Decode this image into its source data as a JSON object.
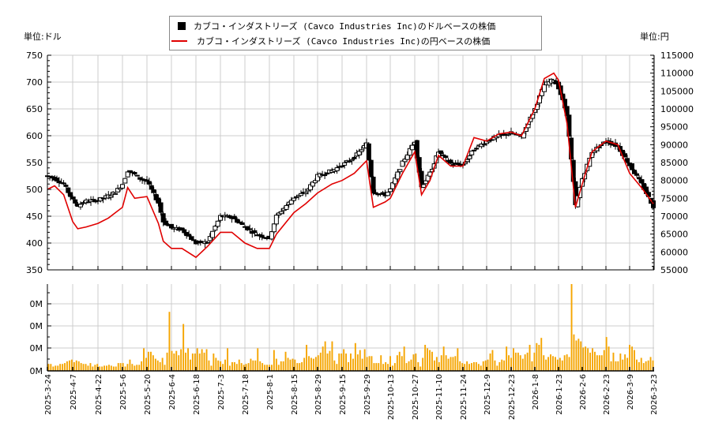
{
  "legend": {
    "usd_label": "カブコ・インダストリーズ (Cavco Industries Inc)のドルベースの株価",
    "jpy_label": "カブコ・インダストリーズ (Cavco Industries Inc)の円ベースの株価"
  },
  "axes": {
    "left_unit": "単位:ドル",
    "right_unit": "単位:円",
    "left_ticks": [
      "750",
      "700",
      "650",
      "600",
      "550",
      "500",
      "450",
      "400",
      "350"
    ],
    "right_ticks": [
      "115000",
      "110000",
      "105000",
      "100000",
      "95000",
      "90000",
      "85000",
      "80000",
      "75000",
      "70000",
      "65000",
      "60000",
      "55000"
    ],
    "volume_ticks": [
      "0M",
      "0M",
      "0M",
      "0M"
    ],
    "x_ticks": [
      "2025-3-24",
      "2025-4-7",
      "2025-4-22",
      "2025-5-6",
      "2025-5-20",
      "2025-6-4",
      "2025-6-18",
      "2025-7-3",
      "2025-7-18",
      "2025-8-1",
      "2025-8-15",
      "2025-8-29",
      "2025-9-15",
      "2025-9-29",
      "2025-10-13",
      "2025-10-27",
      "2025-11-10",
      "2025-11-24",
      "2025-12-9",
      "2025-12-23",
      "2026-1-8",
      "2026-1-23",
      "2026-2-6",
      "2026-2-23",
      "2026-3-9",
      "2026-3-23"
    ]
  },
  "colors": {
    "usd_candle": "#000000",
    "jpy_line": "#e00000",
    "volume_bar": "#f5a500",
    "grid": "#cccccc"
  },
  "chart_data": [
    {
      "type": "candlestick",
      "title": "カブコ・インダストリーズ (Cavco Industries Inc)のドルベースの株価",
      "ylabel": "単位:ドル",
      "ylim": [
        350,
        750
      ],
      "xlim": [
        "2025-3-24",
        "2026-3-23"
      ],
      "grid": true,
      "legend_position": "top-center",
      "close_series_usd": [
        {
          "x": "2025-3-24",
          "close": 525
        },
        {
          "x": "2025-3-28",
          "close": 520
        },
        {
          "x": "2025-4-2",
          "close": 510
        },
        {
          "x": "2025-4-7",
          "close": 480
        },
        {
          "x": "2025-4-10",
          "close": 470
        },
        {
          "x": "2025-4-15",
          "close": 478
        },
        {
          "x": "2025-4-22",
          "close": 480
        },
        {
          "x": "2025-4-28",
          "close": 488
        },
        {
          "x": "2025-5-2",
          "close": 495
        },
        {
          "x": "2025-5-6",
          "close": 510
        },
        {
          "x": "2025-5-9",
          "close": 535
        },
        {
          "x": "2025-5-13",
          "close": 528
        },
        {
          "x": "2025-5-16",
          "close": 520
        },
        {
          "x": "2025-5-20",
          "close": 515
        },
        {
          "x": "2025-5-27",
          "close": 475
        },
        {
          "x": "2025-5-30",
          "close": 440
        },
        {
          "x": "2025-6-4",
          "close": 428
        },
        {
          "x": "2025-6-10",
          "close": 425
        },
        {
          "x": "2025-6-18",
          "close": 400
        },
        {
          "x": "2025-6-25",
          "close": 402
        },
        {
          "x": "2025-7-3",
          "close": 450
        },
        {
          "x": "2025-7-10",
          "close": 448
        },
        {
          "x": "2025-7-18",
          "close": 430
        },
        {
          "x": "2025-7-25",
          "close": 415
        },
        {
          "x": "2025-8-1",
          "close": 410
        },
        {
          "x": "2025-8-5",
          "close": 450
        },
        {
          "x": "2025-8-15",
          "close": 485
        },
        {
          "x": "2025-8-22",
          "close": 495
        },
        {
          "x": "2025-8-29",
          "close": 525
        },
        {
          "x": "2025-9-8",
          "close": 535
        },
        {
          "x": "2025-9-15",
          "close": 545
        },
        {
          "x": "2025-9-22",
          "close": 560
        },
        {
          "x": "2025-9-29",
          "close": 585
        },
        {
          "x": "2025-10-3",
          "close": 495
        },
        {
          "x": "2025-10-10",
          "close": 490
        },
        {
          "x": "2025-10-13",
          "close": 500
        },
        {
          "x": "2025-10-20",
          "close": 550
        },
        {
          "x": "2025-10-27",
          "close": 590
        },
        {
          "x": "2025-10-31",
          "close": 505
        },
        {
          "x": "2025-11-5",
          "close": 530
        },
        {
          "x": "2025-11-10",
          "close": 570
        },
        {
          "x": "2025-11-17",
          "close": 548
        },
        {
          "x": "2025-11-24",
          "close": 545
        },
        {
          "x": "2025-12-1",
          "close": 575
        },
        {
          "x": "2025-12-9",
          "close": 590
        },
        {
          "x": "2025-12-16",
          "close": 600
        },
        {
          "x": "2025-12-23",
          "close": 605
        },
        {
          "x": "2025-12-30",
          "close": 598
        },
        {
          "x": "2026-1-8",
          "close": 650
        },
        {
          "x": "2026-1-14",
          "close": 695
        },
        {
          "x": "2026-1-20",
          "close": 705
        },
        {
          "x": "2026-1-23",
          "close": 690
        },
        {
          "x": "2026-1-28",
          "close": 640
        },
        {
          "x": "2026-2-2",
          "close": 470
        },
        {
          "x": "2026-2-6",
          "close": 520
        },
        {
          "x": "2026-2-13",
          "close": 570
        },
        {
          "x": "2026-2-23",
          "close": 590
        },
        {
          "x": "2026-3-2",
          "close": 580
        },
        {
          "x": "2026-3-9",
          "close": 545
        },
        {
          "x": "2026-3-16",
          "close": 510
        },
        {
          "x": "2026-3-23",
          "close": 468
        }
      ]
    },
    {
      "type": "line",
      "title": "カブコ・インダストリーズ (Cavco Industries Inc)の円ベースの株価",
      "ylabel": "単位:円",
      "ylim": [
        55000,
        115000
      ],
      "series": [
        {
          "name": "円ベース",
          "values_by_date": [
            {
              "x": "2025-3-24",
              "y": 77500
            },
            {
              "x": "2025-3-28",
              "y": 78500
            },
            {
              "x": "2025-4-2",
              "y": 76000
            },
            {
              "x": "2025-4-7",
              "y": 68500
            },
            {
              "x": "2025-4-10",
              "y": 66500
            },
            {
              "x": "2025-4-15",
              "y": 67000
            },
            {
              "x": "2025-4-22",
              "y": 68000
            },
            {
              "x": "2025-4-28",
              "y": 69500
            },
            {
              "x": "2025-5-2",
              "y": 71000
            },
            {
              "x": "2025-5-6",
              "y": 72500
            },
            {
              "x": "2025-5-9",
              "y": 78000
            },
            {
              "x": "2025-5-13",
              "y": 75000
            },
            {
              "x": "2025-5-20",
              "y": 75500
            },
            {
              "x": "2025-5-27",
              "y": 68000
            },
            {
              "x": "2025-5-30",
              "y": 63000
            },
            {
              "x": "2025-6-4",
              "y": 61000
            },
            {
              "x": "2025-6-10",
              "y": 61000
            },
            {
              "x": "2025-6-18",
              "y": 58500
            },
            {
              "x": "2025-6-25",
              "y": 61500
            },
            {
              "x": "2025-7-3",
              "y": 65500
            },
            {
              "x": "2025-7-10",
              "y": 65500
            },
            {
              "x": "2025-7-18",
              "y": 62500
            },
            {
              "x": "2025-7-25",
              "y": 61000
            },
            {
              "x": "2025-8-1",
              "y": 61000
            },
            {
              "x": "2025-8-5",
              "y": 65000
            },
            {
              "x": "2025-8-15",
              "y": 71000
            },
            {
              "x": "2025-8-22",
              "y": 73500
            },
            {
              "x": "2025-8-29",
              "y": 76500
            },
            {
              "x": "2025-9-8",
              "y": 79000
            },
            {
              "x": "2025-9-15",
              "y": 80000
            },
            {
              "x": "2025-9-22",
              "y": 82000
            },
            {
              "x": "2025-9-29",
              "y": 85500
            },
            {
              "x": "2025-10-3",
              "y": 72500
            },
            {
              "x": "2025-10-10",
              "y": 74000
            },
            {
              "x": "2025-10-13",
              "y": 75000
            },
            {
              "x": "2025-10-20",
              "y": 82000
            },
            {
              "x": "2025-10-27",
              "y": 88000
            },
            {
              "x": "2025-10-31",
              "y": 76000
            },
            {
              "x": "2025-11-5",
              "y": 80000
            },
            {
              "x": "2025-11-10",
              "y": 87000
            },
            {
              "x": "2025-11-17",
              "y": 84000
            },
            {
              "x": "2025-11-24",
              "y": 84000
            },
            {
              "x": "2025-12-1",
              "y": 92000
            },
            {
              "x": "2025-12-9",
              "y": 91000
            },
            {
              "x": "2025-12-16",
              "y": 93000
            },
            {
              "x": "2025-12-23",
              "y": 93500
            },
            {
              "x": "2025-12-30",
              "y": 92500
            },
            {
              "x": "2026-1-8",
              "y": 100000
            },
            {
              "x": "2026-1-14",
              "y": 108500
            },
            {
              "x": "2026-1-20",
              "y": 110000
            },
            {
              "x": "2026-1-23",
              "y": 108000
            },
            {
              "x": "2026-1-28",
              "y": 96000
            },
            {
              "x": "2026-2-2",
              "y": 72500
            },
            {
              "x": "2026-2-6",
              "y": 79000
            },
            {
              "x": "2026-2-13",
              "y": 88000
            },
            {
              "x": "2026-2-23",
              "y": 91000
            },
            {
              "x": "2026-3-2",
              "y": 90000
            },
            {
              "x": "2026-3-9",
              "y": 82000
            },
            {
              "x": "2026-3-16",
              "y": 78000
            },
            {
              "x": "2026-3-23",
              "y": 73500
            }
          ]
        }
      ]
    },
    {
      "type": "bar",
      "title": "出来高",
      "ylabel": "",
      "yticks_label": [
        "0M",
        "0M",
        "0M",
        "0M"
      ],
      "note": "relative daily volume heights (fraction of panel height); peak on ~2026-1-30",
      "categories_range": [
        "2025-3-24",
        "2026-3-23"
      ],
      "values_relative": [
        0.08,
        0.08,
        0.05,
        0.06,
        0.06,
        0.08,
        0.08,
        0.09,
        0.11,
        0.12,
        0.13,
        0.1,
        0.12,
        0.11,
        0.09,
        0.08,
        0.08,
        0.06,
        0.09,
        0.05,
        0.07,
        0.08,
        0.05,
        0.05,
        0.06,
        0.06,
        0.07,
        0.06,
        0.05,
        0.05,
        0.09,
        0.09,
        0.09,
        0.05,
        0.08,
        0.13,
        0.08,
        0.06,
        0.07,
        0.07,
        0.11,
        0.26,
        0.15,
        0.22,
        0.22,
        0.18,
        0.14,
        0.12,
        0.1,
        0.15,
        0.07,
        0.21,
        0.68,
        0.23,
        0.2,
        0.23,
        0.18,
        0.25,
        0.54,
        0.21,
        0.26,
        0.13,
        0.2,
        0.2,
        0.26,
        0.2,
        0.25,
        0.21,
        0.25,
        0.12,
        0.06,
        0.2,
        0.15,
        0.12,
        0.11,
        0.08,
        0.13,
        0.26,
        0.06,
        0.1,
        0.1,
        0.08,
        0.13,
        0.09,
        0.07,
        0.08,
        0.09,
        0.14,
        0.12,
        0.12,
        0.26,
        0.11,
        0.09,
        0.07,
        0.07,
        0.07,
        0.07,
        0.24,
        0.14,
        0.07,
        0.11,
        0.11,
        0.22,
        0.15,
        0.13,
        0.14,
        0.13,
        0.09,
        0.09,
        0.1,
        0.15,
        0.3,
        0.17,
        0.15,
        0.14,
        0.16,
        0.18,
        0.21,
        0.28,
        0.34,
        0.2,
        0.23,
        0.34,
        0.12,
        0.08,
        0.2,
        0.2,
        0.25,
        0.2,
        0.1,
        0.2,
        0.14,
        0.32,
        0.19,
        0.24,
        0.14,
        0.25,
        0.16,
        0.17,
        0.17,
        0.09,
        0.09,
        0.09,
        0.18,
        0.08,
        0.1,
        0.08,
        0.17,
        0.06,
        0.09,
        0.18,
        0.22,
        0.17,
        0.28,
        0.09,
        0.11,
        0.13,
        0.19,
        0.2,
        0.1,
        0.05,
        0.15,
        0.3,
        0.26,
        0.24,
        0.22,
        0.12,
        0.16,
        0.1,
        0.18,
        0.28,
        0.18,
        0.14,
        0.16,
        0.16,
        0.17,
        0.26,
        0.11,
        0.09,
        0.08,
        0.11,
        0.08,
        0.09,
        0.1,
        0.1,
        0.08,
        0.06,
        0.11,
        0.12,
        0.13,
        0.2,
        0.24,
        0.12,
        0.06,
        0.1,
        0.13,
        0.12,
        0.28,
        0.18,
        0.15,
        0.26,
        0.21,
        0.21,
        0.18,
        0.14,
        0.19,
        0.21,
        0.3,
        0.11,
        0.21,
        0.32,
        0.3,
        0.38,
        0.18,
        0.13,
        0.16,
        0.19,
        0.17,
        0.16,
        0.13,
        0.15,
        0.12,
        0.18,
        0.19,
        0.16,
        1.0,
        0.42,
        0.35,
        0.37,
        0.34,
        0.27,
        0.28,
        0.26,
        0.21,
        0.26,
        0.22,
        0.18,
        0.18,
        0.18,
        0.24,
        0.39,
        0.28,
        0.11,
        0.21,
        0.11,
        0.11,
        0.2,
        0.13,
        0.19,
        0.15,
        0.3,
        0.28,
        0.24,
        0.13,
        0.1,
        0.15,
        0.09,
        0.11,
        0.12,
        0.16,
        0.12
      ]
    }
  ]
}
